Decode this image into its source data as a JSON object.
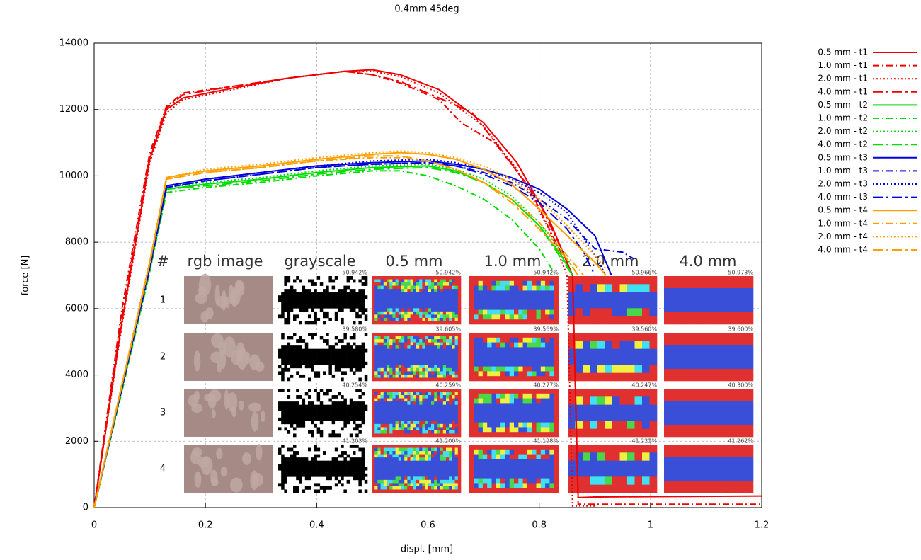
{
  "chart_data": {
    "type": "line",
    "title": "0.4mm 45deg",
    "x_label": "displ. [mm]",
    "y_label": "force [N]",
    "xlim": [
      0,
      1.2
    ],
    "ylim": [
      0,
      14000
    ],
    "xticks": [
      0,
      0.2,
      0.4,
      0.6,
      0.8,
      1,
      1.2
    ],
    "yticks": [
      0,
      2000,
      4000,
      6000,
      8000,
      10000,
      12000,
      14000
    ],
    "grid": true,
    "legend": "right",
    "series": [
      {
        "name": "0.5 mm - t1",
        "color": "#ee0000",
        "dash": "solid",
        "x": [
          0,
          0.05,
          0.1,
          0.13,
          0.16,
          0.25,
          0.35,
          0.45,
          0.5,
          0.55,
          0.62,
          0.7,
          0.76,
          0.82,
          0.86,
          0.87,
          0.9,
          1.0,
          1.1,
          1.2
        ],
        "values": [
          0,
          5600,
          10500,
          12000,
          12350,
          12650,
          12950,
          13150,
          13200,
          13050,
          12600,
          11600,
          10400,
          8600,
          7000,
          300,
          320,
          330,
          340,
          350
        ]
      },
      {
        "name": "1.0 mm - t1",
        "color": "#ee0000",
        "dash": "dash-dot",
        "x": [
          0,
          0.05,
          0.1,
          0.13,
          0.16,
          0.25,
          0.35,
          0.45,
          0.5,
          0.55,
          0.62,
          0.66,
          0.72,
          0.78,
          0.83,
          0.86,
          0.87,
          1.2
        ],
        "values": [
          0,
          6000,
          10700,
          12100,
          12500,
          12700,
          12950,
          13150,
          13050,
          12800,
          12300,
          11600,
          11000,
          9700,
          8000,
          7000,
          100,
          100
        ]
      },
      {
        "name": "2.0 mm - t1",
        "color": "#ee0000",
        "dash": "dotted",
        "x": [
          0,
          0.05,
          0.1,
          0.13,
          0.16,
          0.25,
          0.35,
          0.45,
          0.5,
          0.55,
          0.62,
          0.7,
          0.76,
          0.82,
          0.85,
          0.86,
          0.9
        ],
        "values": [
          0,
          5500,
          10400,
          11900,
          12300,
          12600,
          12950,
          13150,
          13150,
          13000,
          12500,
          11500,
          10200,
          8300,
          7000,
          50,
          50
        ]
      },
      {
        "name": "4.0 mm - t1",
        "color": "#ee0000",
        "dash": "long-dash-dot",
        "x": [
          0,
          0.05,
          0.1,
          0.13,
          0.16,
          0.25,
          0.35,
          0.45,
          0.5,
          0.55,
          0.62,
          0.68,
          0.74,
          0.8,
          0.84,
          0.86
        ],
        "values": [
          0,
          5800,
          10600,
          12050,
          12450,
          12700,
          12950,
          13150,
          13050,
          12850,
          12350,
          11900,
          10600,
          9200,
          7800,
          7000
        ]
      },
      {
        "name": "0.5 mm - t2",
        "color": "#00dd00",
        "dash": "solid",
        "x": [
          0,
          0.05,
          0.1,
          0.13,
          0.2,
          0.3,
          0.4,
          0.5,
          0.6,
          0.65,
          0.7,
          0.75,
          0.8,
          0.84,
          0.86
        ],
        "values": [
          0,
          3600,
          7200,
          9600,
          9750,
          9900,
          10100,
          10250,
          10300,
          10150,
          9800,
          9300,
          8500,
          7600,
          7000
        ]
      },
      {
        "name": "1.0 mm - t2",
        "color": "#00dd00",
        "dash": "dash-dot",
        "x": [
          0,
          0.05,
          0.1,
          0.13,
          0.2,
          0.3,
          0.4,
          0.5,
          0.55,
          0.6,
          0.65,
          0.7,
          0.75,
          0.8,
          0.83
        ],
        "values": [
          0,
          3500,
          7100,
          9500,
          9650,
          9800,
          10000,
          10150,
          10150,
          10000,
          9700,
          9300,
          8700,
          7800,
          7000
        ]
      },
      {
        "name": "2.0 mm - t2",
        "color": "#00dd00",
        "dash": "dotted",
        "x": [
          0,
          0.05,
          0.1,
          0.13,
          0.2,
          0.3,
          0.4,
          0.5,
          0.6,
          0.65,
          0.7,
          0.75,
          0.8,
          0.85,
          0.87
        ],
        "values": [
          0,
          3600,
          7200,
          9650,
          9800,
          9950,
          10150,
          10300,
          10350,
          10200,
          9900,
          9400,
          8600,
          7500,
          7000
        ]
      },
      {
        "name": "4.0 mm - t2",
        "color": "#00dd00",
        "dash": "long-dash-dot",
        "x": [
          0,
          0.05,
          0.1,
          0.13,
          0.2,
          0.3,
          0.4,
          0.5,
          0.6,
          0.65,
          0.7,
          0.75,
          0.8,
          0.84,
          0.86
        ],
        "values": [
          0,
          3550,
          7150,
          9600,
          9700,
          9850,
          10050,
          10200,
          10250,
          10100,
          9800,
          9300,
          8500,
          7500,
          7000
        ]
      },
      {
        "name": "0.5 mm - t3",
        "color": "#0000dd",
        "dash": "solid",
        "x": [
          0,
          0.05,
          0.1,
          0.13,
          0.2,
          0.3,
          0.4,
          0.5,
          0.6,
          0.65,
          0.7,
          0.75,
          0.8,
          0.85,
          0.9,
          0.93
        ],
        "values": [
          0,
          3650,
          7300,
          9700,
          9900,
          10100,
          10300,
          10400,
          10450,
          10350,
          10200,
          9950,
          9600,
          9000,
          8200,
          7000
        ]
      },
      {
        "name": "1.0 mm - t3",
        "color": "#0000dd",
        "dash": "dash-dot",
        "x": [
          0,
          0.05,
          0.1,
          0.13,
          0.2,
          0.3,
          0.4,
          0.5,
          0.6,
          0.65,
          0.7,
          0.75,
          0.8,
          0.85,
          0.9,
          0.95,
          0.97
        ],
        "values": [
          0,
          3600,
          7250,
          9650,
          9850,
          10050,
          10250,
          10350,
          10400,
          10300,
          10100,
          9800,
          9300,
          8700,
          7800,
          7700,
          7500
        ]
      },
      {
        "name": "2.0 mm - t3",
        "color": "#0000dd",
        "dash": "dotted",
        "x": [
          0,
          0.05,
          0.1,
          0.13,
          0.2,
          0.3,
          0.4,
          0.5,
          0.6,
          0.65,
          0.7,
          0.75,
          0.8,
          0.85,
          0.9,
          0.92
        ],
        "values": [
          0,
          3650,
          7300,
          9700,
          9900,
          10100,
          10300,
          10450,
          10500,
          10400,
          10200,
          9900,
          9500,
          8900,
          7600,
          7000
        ]
      },
      {
        "name": "4.0 mm - t3",
        "color": "#0000dd",
        "dash": "long-dash-dot",
        "x": [
          0,
          0.05,
          0.1,
          0.13,
          0.2,
          0.3,
          0.4,
          0.5,
          0.6,
          0.65,
          0.7,
          0.75,
          0.8,
          0.85,
          0.88,
          0.9
        ],
        "values": [
          0,
          3600,
          7200,
          9650,
          9850,
          10050,
          10250,
          10350,
          10400,
          10300,
          10050,
          9700,
          9200,
          8400,
          7700,
          7000
        ]
      },
      {
        "name": "0.5 mm - t4",
        "color": "#ffa000",
        "dash": "solid",
        "x": [
          0,
          0.05,
          0.1,
          0.13,
          0.2,
          0.3,
          0.4,
          0.5,
          0.55,
          0.6,
          0.65,
          0.7,
          0.75,
          0.8,
          0.85,
          0.9,
          0.92
        ],
        "values": [
          0,
          3700,
          7400,
          9950,
          10150,
          10300,
          10500,
          10650,
          10700,
          10650,
          10500,
          10200,
          9750,
          9000,
          8200,
          7400,
          7000
        ]
      },
      {
        "name": "1.0 mm - t4",
        "color": "#ffa000",
        "dash": "dash-dot",
        "x": [
          0,
          0.05,
          0.1,
          0.13,
          0.2,
          0.3,
          0.4,
          0.5,
          0.55,
          0.6,
          0.65,
          0.7,
          0.75,
          0.8,
          0.85,
          0.88
        ],
        "values": [
          0,
          3700,
          7350,
          9900,
          10100,
          10250,
          10450,
          10550,
          10550,
          10450,
          10200,
          9800,
          9300,
          8600,
          7600,
          7000
        ]
      },
      {
        "name": "2.0 mm - t4",
        "color": "#ffa000",
        "dash": "dotted",
        "x": [
          0,
          0.05,
          0.1,
          0.13,
          0.2,
          0.3,
          0.4,
          0.5,
          0.55,
          0.6,
          0.65,
          0.7,
          0.75,
          0.8,
          0.85,
          0.9,
          0.93
        ],
        "values": [
          0,
          3750,
          7450,
          9950,
          10200,
          10350,
          10550,
          10700,
          10750,
          10700,
          10550,
          10300,
          9900,
          9300,
          8500,
          7600,
          7000
        ]
      },
      {
        "name": "4.0 mm - t4",
        "color": "#ffa000",
        "dash": "long-dash-dot",
        "x": [
          0,
          0.05,
          0.1,
          0.13,
          0.2,
          0.3,
          0.4,
          0.5,
          0.55,
          0.6,
          0.65,
          0.7,
          0.75,
          0.8,
          0.85,
          0.87
        ],
        "values": [
          0,
          3700,
          7400,
          9900,
          10100,
          10250,
          10450,
          10600,
          10600,
          10450,
          10200,
          9800,
          9200,
          8400,
          7500,
          7000
        ]
      }
    ]
  },
  "inset": {
    "headers": [
      "#",
      "rgb image",
      "grayscale",
      "0.5 mm",
      "1.0 mm",
      "2.0 mm",
      "4.0 mm"
    ],
    "rows": [
      {
        "label": "1",
        "percentages": [
          "50.942%",
          "50.942%",
          "50.942%",
          "50.966%",
          "50.973%"
        ]
      },
      {
        "label": "2",
        "percentages": [
          "39.580%",
          "39.605%",
          "39.569%",
          "39.560%",
          "39.600%"
        ]
      },
      {
        "label": "3",
        "percentages": [
          "40.254%",
          "40.259%",
          "40.277%",
          "40.247%",
          "40.300%"
        ]
      },
      {
        "label": "4",
        "percentages": [
          "41.203%",
          "41.200%",
          "41.198%",
          "41.221%",
          "41.262%"
        ]
      }
    ]
  }
}
